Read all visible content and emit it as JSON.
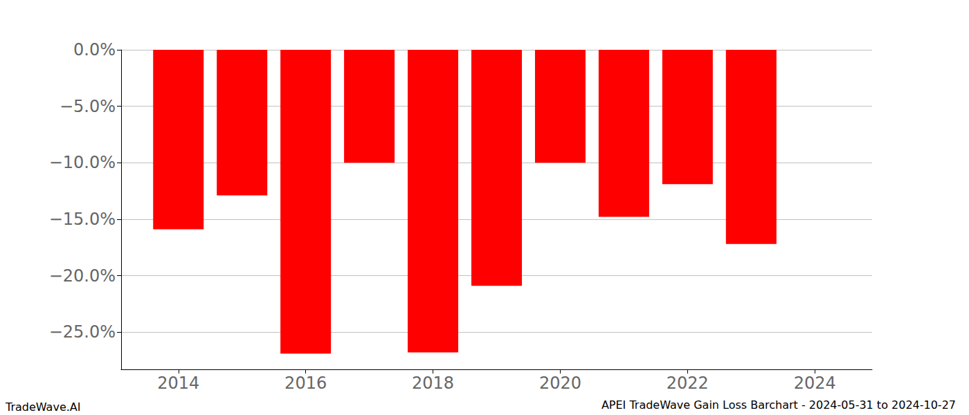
{
  "chart_data": {
    "type": "bar",
    "title": "APEI TradeWave Gain Loss Barchart - 2024-05-31 to 2024-10-27",
    "annotations": [
      "TradeWave.AI"
    ],
    "x": [
      2014,
      2015,
      2016,
      2017,
      2018,
      2019,
      2020,
      2021,
      2022,
      2023
    ],
    "values": [
      -15.9,
      -12.9,
      -26.9,
      -10.0,
      -26.8,
      -20.9,
      -10.0,
      -14.8,
      -11.9,
      -17.2
    ],
    "color": "#ff0000",
    "xlim": [
      2013.1,
      2024.9
    ],
    "xticks": [
      2014,
      2016,
      2018,
      2020,
      2022,
      2024
    ],
    "ylim": [
      -28.3,
      0
    ],
    "yticks": [
      {
        "value": 0,
        "label": "0.0%"
      },
      {
        "value": -5,
        "label": "−5.0%"
      },
      {
        "value": -10,
        "label": "−10.0%"
      },
      {
        "value": -15,
        "label": "−15.0%"
      },
      {
        "value": -20,
        "label": "−20.0%"
      },
      {
        "value": -25,
        "label": "−25.0%"
      }
    ],
    "grid": true
  }
}
